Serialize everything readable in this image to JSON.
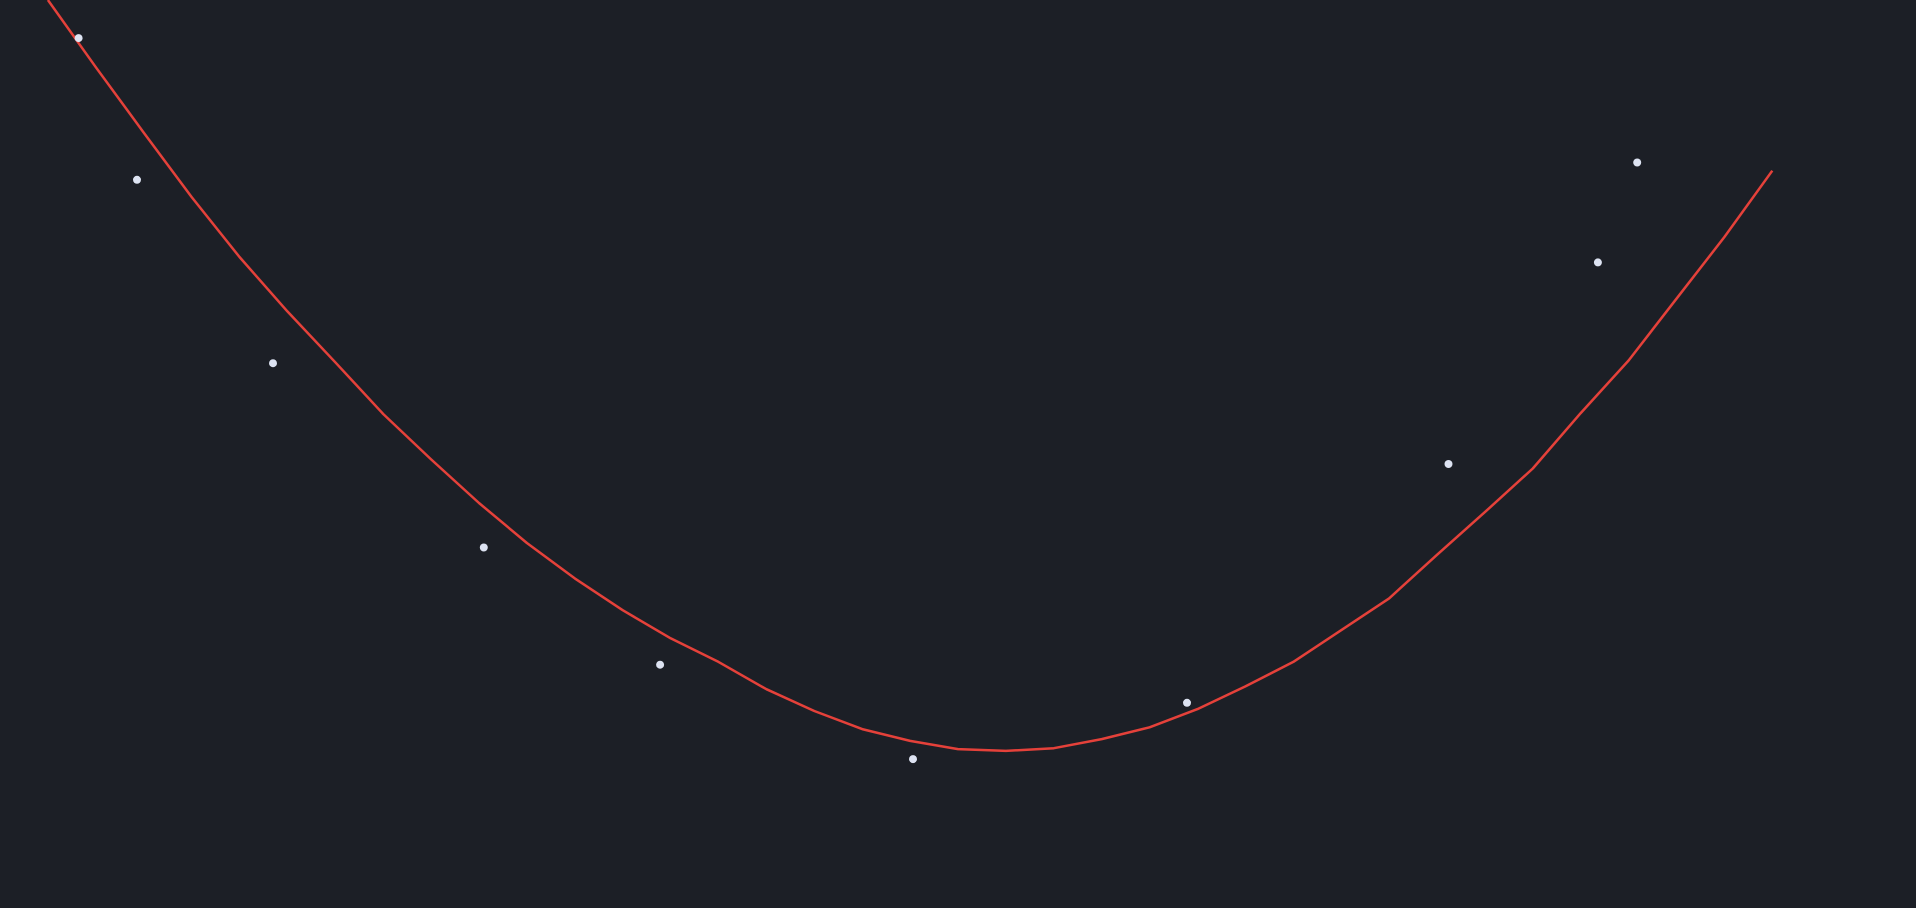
{
  "colors": {
    "background": "#1c1f26",
    "curve": "#e5413a",
    "points": "#dde3f2"
  },
  "chart_data": {
    "type": "scatter",
    "title": "",
    "xlabel": "",
    "ylabel": "",
    "grid": false,
    "legend": "none",
    "xlim": [
      -1.0,
      1.0
    ],
    "ylim": [
      0.0,
      1.0
    ],
    "points": {
      "x": [
        -0.918,
        -0.857,
        -0.715,
        -0.495,
        -0.311,
        -0.047,
        0.239,
        0.512,
        0.668,
        0.709
      ],
      "y": [
        0.958,
        0.802,
        0.6,
        0.397,
        0.268,
        0.164,
        0.226,
        0.489,
        0.711,
        0.821
      ]
    },
    "fit_curve": {
      "x": [
        -0.95,
        -0.9,
        -0.85,
        -0.8,
        -0.75,
        -0.7,
        -0.65,
        -0.6,
        -0.55,
        -0.5,
        -0.45,
        -0.4,
        -0.35,
        -0.3,
        -0.25,
        -0.2,
        -0.15,
        -0.1,
        -0.05,
        0.0,
        0.05,
        0.1,
        0.15,
        0.2,
        0.25,
        0.3,
        0.35,
        0.4,
        0.45,
        0.5,
        0.55,
        0.6,
        0.65,
        0.7,
        0.75,
        0.8,
        0.85
      ],
      "y": [
        1.0,
        0.926,
        0.854,
        0.783,
        0.717,
        0.657,
        0.601,
        0.544,
        0.494,
        0.446,
        0.402,
        0.363,
        0.328,
        0.297,
        0.271,
        0.241,
        0.217,
        0.197,
        0.184,
        0.175,
        0.173,
        0.176,
        0.186,
        0.199,
        0.219,
        0.244,
        0.271,
        0.306,
        0.341,
        0.389,
        0.436,
        0.484,
        0.545,
        0.603,
        0.671,
        0.739,
        0.812
      ]
    }
  }
}
